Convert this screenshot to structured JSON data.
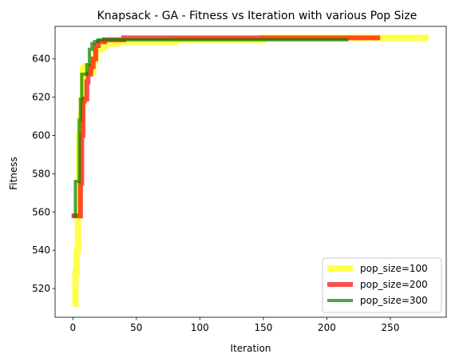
{
  "chart_data": {
    "type": "line",
    "title": "Knapsack - GA - Fitness vs Iteration with various Pop Size",
    "xlabel": "Iteration",
    "ylabel": "Fitness",
    "xlim": [
      -14,
      294
    ],
    "ylim": [
      505,
      657
    ],
    "xticks": [
      0,
      50,
      100,
      150,
      200,
      250
    ],
    "yticks": [
      520,
      540,
      560,
      580,
      600,
      620,
      640
    ],
    "legend_position": "lower-right",
    "grid": false,
    "series": [
      {
        "name": "pop_size=100",
        "color": "#ffff00",
        "alpha": 0.7,
        "width": 8,
        "points": [
          [
            0,
            512
          ],
          [
            1,
            512
          ],
          [
            2,
            528
          ],
          [
            3,
            540
          ],
          [
            4,
            560
          ],
          [
            5,
            600
          ],
          [
            6,
            610
          ],
          [
            7,
            618
          ],
          [
            8,
            635
          ],
          [
            10,
            636
          ],
          [
            11,
            633
          ],
          [
            15,
            633
          ],
          [
            16,
            640
          ],
          [
            18,
            645
          ],
          [
            22,
            646
          ],
          [
            25,
            648
          ],
          [
            30,
            648
          ],
          [
            35,
            649
          ],
          [
            50,
            649
          ],
          [
            80,
            650
          ],
          [
            100,
            650
          ],
          [
            150,
            651
          ],
          [
            200,
            651
          ],
          [
            240,
            651
          ],
          [
            280,
            651
          ]
        ]
      },
      {
        "name": "pop_size=200",
        "color": "#ff0000",
        "alpha": 0.7,
        "width": 6,
        "points": [
          [
            -1,
            558
          ],
          [
            0,
            558
          ],
          [
            5,
            558
          ],
          [
            6,
            575
          ],
          [
            7,
            600
          ],
          [
            8,
            618
          ],
          [
            9,
            619
          ],
          [
            10,
            619
          ],
          [
            11,
            628
          ],
          [
            12,
            632
          ],
          [
            14,
            636
          ],
          [
            16,
            640
          ],
          [
            18,
            647
          ],
          [
            20,
            649
          ],
          [
            25,
            650
          ],
          [
            40,
            651
          ],
          [
            80,
            651
          ],
          [
            150,
            651
          ],
          [
            200,
            651
          ],
          [
            242,
            651
          ]
        ]
      },
      {
        "name": "pop_size=300",
        "color": "#008000",
        "alpha": 0.7,
        "width": 4,
        "points": [
          [
            0,
            558
          ],
          [
            1,
            558
          ],
          [
            2,
            576
          ],
          [
            4,
            576
          ],
          [
            5,
            608
          ],
          [
            6,
            619
          ],
          [
            7,
            632
          ],
          [
            9,
            632
          ],
          [
            11,
            637
          ],
          [
            13,
            645
          ],
          [
            15,
            648
          ],
          [
            17,
            649
          ],
          [
            20,
            650
          ],
          [
            30,
            650
          ],
          [
            100,
            650
          ],
          [
            150,
            650
          ],
          [
            200,
            650
          ],
          [
            217,
            650
          ]
        ]
      }
    ]
  }
}
